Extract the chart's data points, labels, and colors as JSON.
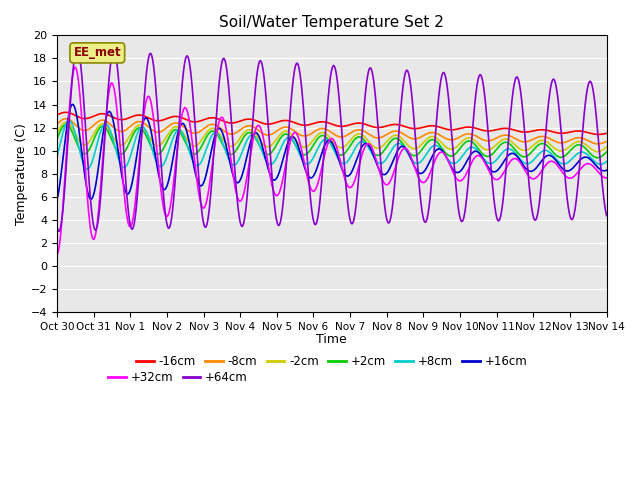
{
  "title": "Soil/Water Temperature Set 2",
  "xlabel": "Time",
  "ylabel": "Temperature (C)",
  "ylim": [
    -4,
    20
  ],
  "xlim": [
    0,
    15
  ],
  "xtick_labels": [
    "Oct 30",
    "Oct 31",
    "Nov 1",
    "Nov 2",
    "Nov 3",
    "Nov 4",
    "Nov 5",
    "Nov 6",
    "Nov 7",
    "Nov 8",
    "Nov 9",
    "Nov 10",
    "Nov 11",
    "Nov 12",
    "Nov 13",
    "Nov 14"
  ],
  "series": [
    {
      "label": "-16cm",
      "color": "#ff0000",
      "base_start": 13.1,
      "base_end": 11.5,
      "amp": 0.25,
      "decay": 0.05,
      "phase": 0.0,
      "period": 1.0
    },
    {
      "label": "-8cm",
      "color": "#ff8800",
      "base_start": 12.3,
      "base_end": 10.8,
      "amp": 0.5,
      "decay": 0.05,
      "phase": 0.0,
      "period": 1.0
    },
    {
      "label": "-2cm",
      "color": "#cccc00",
      "base_start": 11.5,
      "base_end": 10.3,
      "amp": 1.0,
      "decay": 0.06,
      "phase": 0.0,
      "period": 1.0
    },
    {
      "label": "+2cm",
      "color": "#00cc00",
      "base_start": 11.0,
      "base_end": 9.9,
      "amp": 1.3,
      "decay": 0.06,
      "phase": 0.0,
      "period": 1.0
    },
    {
      "label": "+8cm",
      "color": "#00cccc",
      "base_start": 10.5,
      "base_end": 9.3,
      "amp": 2.2,
      "decay": 0.1,
      "phase": 0.08,
      "period": 1.0
    },
    {
      "label": "+16cm",
      "color": "#0000cc",
      "base_start": 9.8,
      "base_end": 8.8,
      "amp": 4.5,
      "decay": 0.14,
      "phase": 0.18,
      "period": 1.0
    },
    {
      "label": "+32cm",
      "color": "#ff00ff",
      "base_start": 9.5,
      "base_end": 8.2,
      "amp": 8.5,
      "decay": 0.18,
      "phase": 0.25,
      "period": 1.0
    },
    {
      "label": "+64cm",
      "color": "#8800cc",
      "base_start": 11.0,
      "base_end": 10.0,
      "amp": 8.0,
      "decay": 0.02,
      "phase": 0.3,
      "period": 1.0
    }
  ],
  "watermark_text": "EE_met",
  "watermark_color": "#880000",
  "watermark_bg": "#eeee88",
  "bg_color": "#e8e8e8",
  "grid_color": "#ffffff"
}
